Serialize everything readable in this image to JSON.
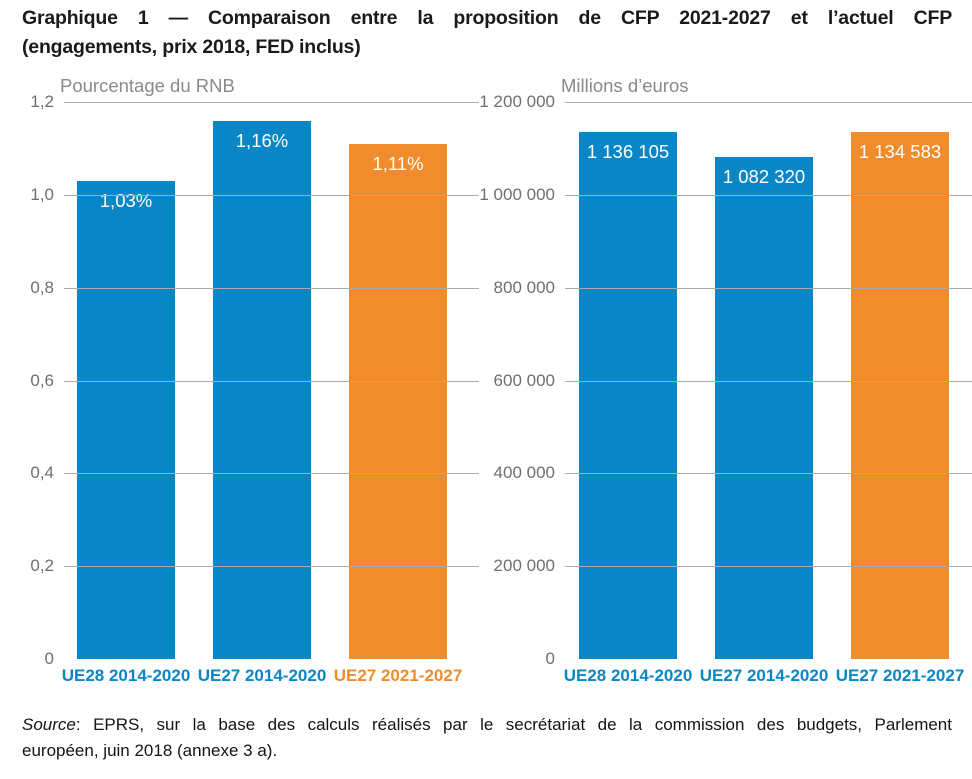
{
  "header": {
    "title_line1": "Graphique 1 — Comparaison entre la proposition de CFP 2021-2027 et l’actuel CFP",
    "title_line2": "(engagements, prix 2018, FED inclus)"
  },
  "source": {
    "prefix": "Source",
    "line1_rest": ": EPRS, sur la base des calculs réalisés par le secrétariat de la commission des budgets, Parlement",
    "line2": "européen, juin 2018 (annexe 3 a)."
  },
  "colors": {
    "blue": "#0886c6",
    "orange": "#f18c2c",
    "grid": "#aaaaaa",
    "axis_text": "#6f6f6f",
    "subtitle_text": "#8a8a8a",
    "bar_label_text": "#ffffff"
  },
  "chart_data": [
    {
      "type": "bar",
      "title": "Pourcentage du RNB",
      "categories": [
        "UE28 2014-2020",
        "UE27 2014-2020",
        "UE27 2021-2027"
      ],
      "values": [
        1.03,
        1.16,
        1.11
      ],
      "value_labels": [
        "1,03%",
        "1,16%",
        "1,11%"
      ],
      "bar_colors": [
        "blue",
        "blue",
        "orange"
      ],
      "category_label_colors": [
        "blue",
        "blue",
        "orange"
      ],
      "xlabel": "",
      "ylabel": "Pourcentage du RNB",
      "ylim": [
        0,
        1.2
      ],
      "yticks": [
        {
          "label": "1,2",
          "value": 1.2
        },
        {
          "label": "1,0",
          "value": 1.0
        },
        {
          "label": "0,8",
          "value": 0.8
        },
        {
          "label": "0,6",
          "value": 0.6
        },
        {
          "label": "0,4",
          "value": 0.4
        },
        {
          "label": "0,2",
          "value": 0.2
        },
        {
          "label": "0",
          "value": 0
        }
      ],
      "grid": true,
      "gridline_at_zero": false,
      "legend_position": "none"
    },
    {
      "type": "bar",
      "title": "Millions d’euros",
      "categories": [
        "UE28 2014-2020",
        "UE27 2014-2020",
        "UE27 2021-2027"
      ],
      "values": [
        1136105,
        1082320,
        1134583
      ],
      "value_labels": [
        "1 136 105",
        "1 082 320",
        "1 134 583"
      ],
      "bar_colors": [
        "blue",
        "blue",
        "orange"
      ],
      "category_label_colors": [
        "blue",
        "blue",
        "blue"
      ],
      "xlabel": "",
      "ylabel": "Millions d’euros",
      "ylim": [
        0,
        1200000
      ],
      "yticks": [
        {
          "label": "1 200 000",
          "value": 1200000
        },
        {
          "label": "1 000 000",
          "value": 1000000
        },
        {
          "label": "800 000",
          "value": 800000
        },
        {
          "label": "600 000",
          "value": 600000
        },
        {
          "label": "400 000",
          "value": 400000
        },
        {
          "label": "200 000",
          "value": 200000
        },
        {
          "label": "0",
          "value": 0
        }
      ],
      "grid": true,
      "gridline_at_zero": false,
      "legend_position": "none"
    }
  ]
}
